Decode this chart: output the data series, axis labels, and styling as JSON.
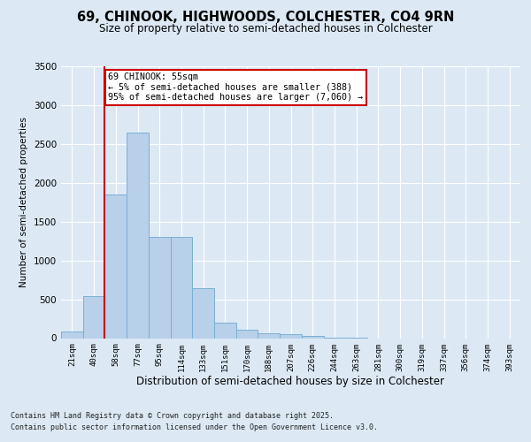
{
  "title1": "69, CHINOOK, HIGHWOODS, COLCHESTER, CO4 9RN",
  "title2": "Size of property relative to semi-detached houses in Colchester",
  "xlabel": "Distribution of semi-detached houses by size in Colchester",
  "ylabel": "Number of semi-detached properties",
  "categories": [
    "21sqm",
    "40sqm",
    "58sqm",
    "77sqm",
    "95sqm",
    "114sqm",
    "133sqm",
    "151sqm",
    "170sqm",
    "188sqm",
    "207sqm",
    "226sqm",
    "244sqm",
    "263sqm",
    "281sqm",
    "300sqm",
    "319sqm",
    "337sqm",
    "356sqm",
    "374sqm",
    "393sqm"
  ],
  "values": [
    80,
    540,
    1850,
    2650,
    1300,
    1300,
    640,
    200,
    105,
    65,
    50,
    25,
    10,
    3,
    0,
    0,
    0,
    0,
    0,
    0,
    0
  ],
  "bar_color": "#b8d0ea",
  "bar_edge_color": "#7aafd4",
  "annotation_title": "69 CHINOOK: 55sqm",
  "annotation_line1": "← 5% of semi-detached houses are smaller (388)",
  "annotation_line2": "95% of semi-detached houses are larger (7,060) →",
  "annotation_box_color": "#ffffff",
  "annotation_box_edge": "#cc0000",
  "vline_color": "#cc0000",
  "vline_x": 1.5,
  "ylim": [
    0,
    3500
  ],
  "yticks": [
    0,
    500,
    1000,
    1500,
    2000,
    2500,
    3000,
    3500
  ],
  "background_color": "#dce9f5",
  "grid_color": "#ffffff",
  "footer1": "Contains HM Land Registry data © Crown copyright and database right 2025.",
  "footer2": "Contains public sector information licensed under the Open Government Licence v3.0."
}
